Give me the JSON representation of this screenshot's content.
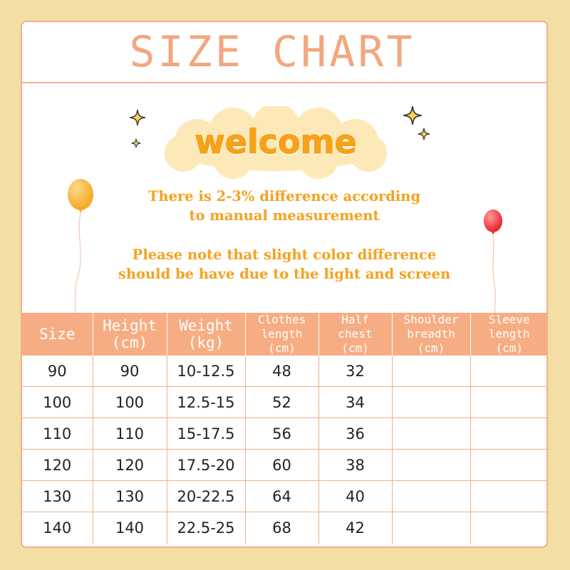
{
  "title": "SIZE CHART",
  "welcome": "welcome",
  "notes": {
    "line1": "There is 2-3% difference according",
    "line2": "to manual measurement",
    "line3": "Please note that slight color difference",
    "line4": "should be have due to the light and screen"
  },
  "table": {
    "headers": [
      {
        "line1": "Size",
        "line2": ""
      },
      {
        "line1": "Height",
        "line2": "(cm)"
      },
      {
        "line1": "Weight",
        "line2": "(kg)"
      },
      {
        "line1": "Clothes",
        "line2": "length",
        "line3": "(cm)"
      },
      {
        "line1": "Half",
        "line2": "chest",
        "line3": "(cm)"
      },
      {
        "line1": "Shoulder",
        "line2": "breadth",
        "line3": "(cm)"
      },
      {
        "line1": "Sleeve",
        "line2": "length",
        "line3": "(cm)"
      }
    ],
    "rows": [
      [
        "90",
        "90",
        "10-12.5",
        "48",
        "32",
        "",
        ""
      ],
      [
        "100",
        "100",
        "12.5-15",
        "52",
        "34",
        "",
        ""
      ],
      [
        "110",
        "110",
        "15-17.5",
        "56",
        "36",
        "",
        ""
      ],
      [
        "120",
        "120",
        "17.5-20",
        "60",
        "38",
        "",
        ""
      ],
      [
        "130",
        "130",
        "20-22.5",
        "64",
        "40",
        "",
        ""
      ],
      [
        "140",
        "140",
        "22.5-25",
        "68",
        "42",
        "",
        ""
      ]
    ]
  },
  "colors": {
    "background": "#f3dfa6",
    "accent": "#f7ad83",
    "title": "#f2a77f",
    "welcome": "#f7a21b",
    "notes": "#f5a21f"
  },
  "icons": [
    "sparkle-icon",
    "balloon-icon"
  ]
}
